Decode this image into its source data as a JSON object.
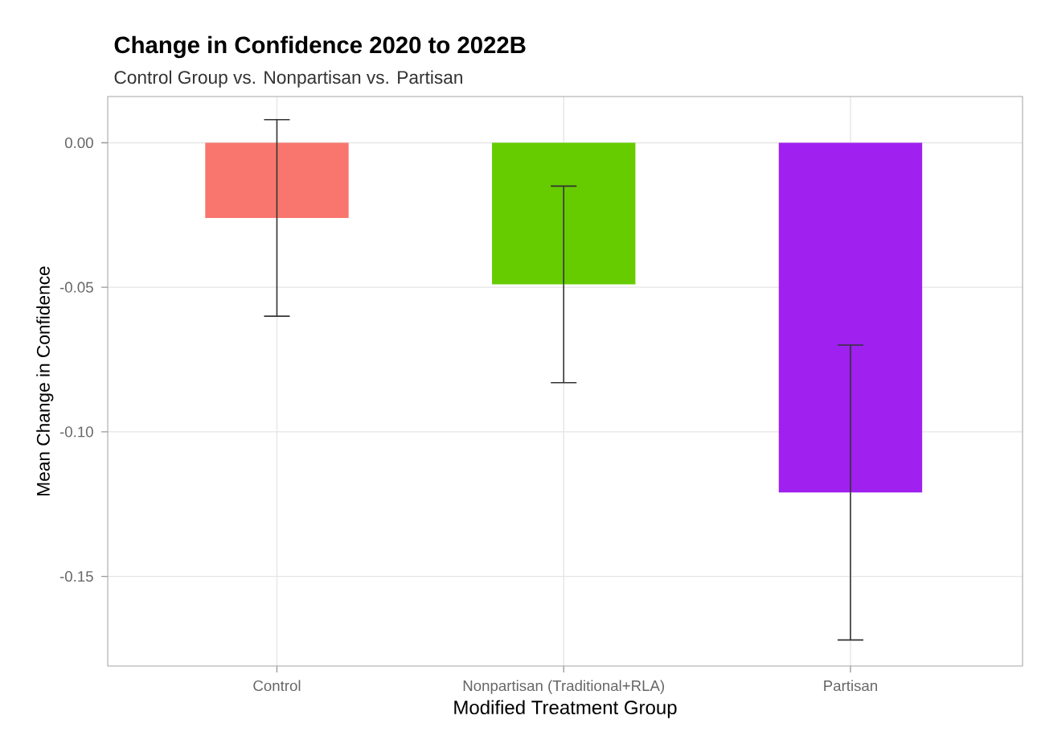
{
  "chart_data": {
    "type": "bar",
    "title": "Change in Confidence 2020 to 2022B",
    "subtitle": "Control Group vs. Nonpartisan vs. Partisan",
    "xlabel": "Modified Treatment Group",
    "ylabel": "Mean Change in Confidence",
    "categories": [
      "Control",
      "Nonpartisan (Traditional+RLA)",
      "Partisan"
    ],
    "values": [
      -0.026,
      -0.049,
      -0.121
    ],
    "colors": [
      "#f8766d",
      "#66cc00",
      "#a020f0"
    ],
    "errors": [
      0.034,
      0.034,
      0.051
    ],
    "ylim": [
      -0.181,
      0.016
    ],
    "yticks": [
      {
        "value": 0,
        "label": "0.00"
      },
      {
        "value": -0.05,
        "label": "-0.05"
      },
      {
        "value": -0.1,
        "label": "-0.10"
      },
      {
        "value": -0.15,
        "label": "-0.15"
      }
    ],
    "grid": true
  }
}
